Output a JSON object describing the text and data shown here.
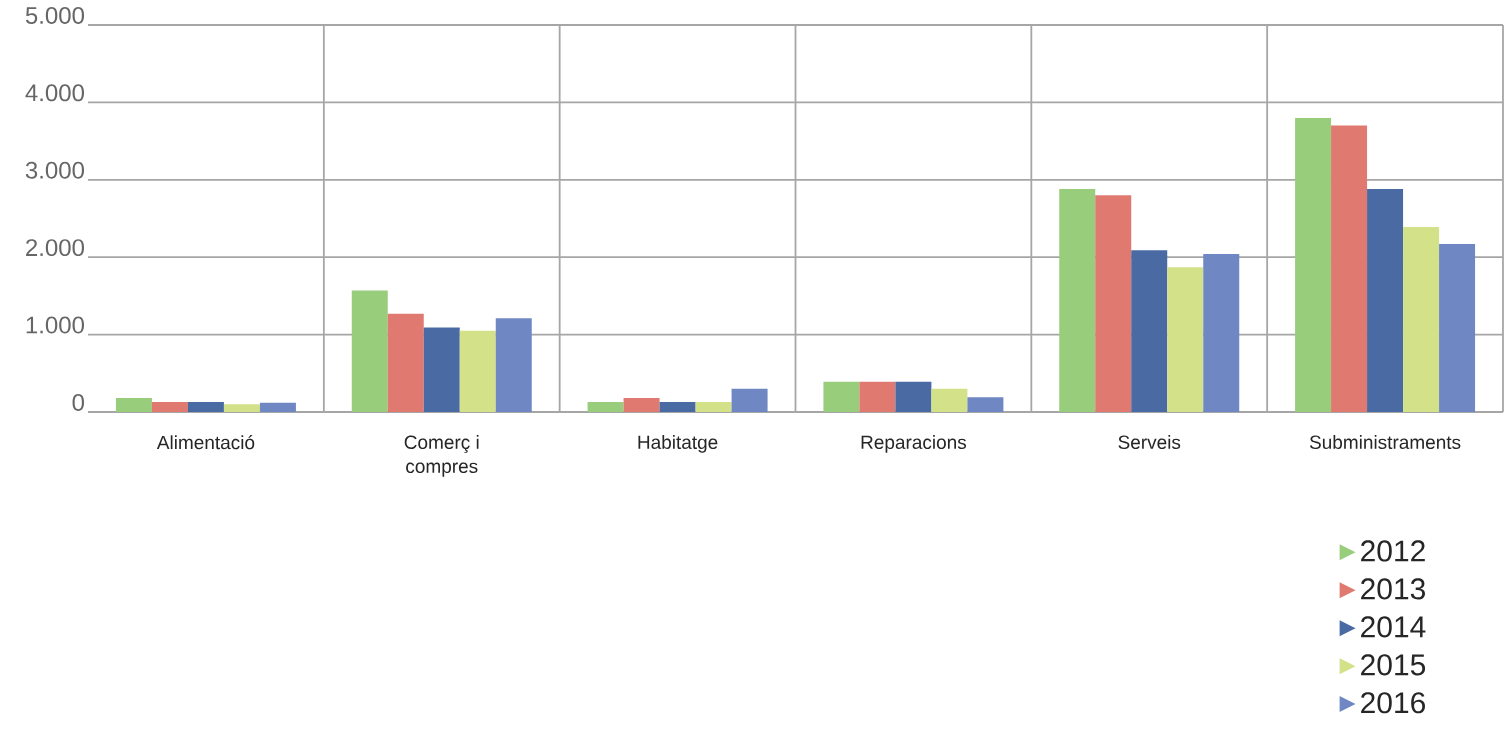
{
  "chart_data": {
    "type": "bar",
    "categories": [
      "Alimentació",
      "Comerç i compres",
      "Habitatge",
      "Reparacions",
      "Serveis",
      "Subministraments"
    ],
    "series": [
      {
        "name": "2012",
        "color": "#98cd7b",
        "values": [
          180,
          1570,
          130,
          390,
          2880,
          3800
        ]
      },
      {
        "name": "2013",
        "color": "#e07970",
        "values": [
          130,
          1270,
          180,
          390,
          2800,
          3700
        ]
      },
      {
        "name": "2014",
        "color": "#4a6aa4",
        "values": [
          130,
          1090,
          130,
          390,
          2090,
          2880
        ]
      },
      {
        "name": "2015",
        "color": "#d3e188",
        "values": [
          100,
          1050,
          130,
          300,
          1870,
          2390
        ]
      },
      {
        "name": "2016",
        "color": "#6f88c4",
        "values": [
          120,
          1210,
          300,
          190,
          2040,
          2170
        ]
      }
    ],
    "ylim": [
      0,
      5000
    ],
    "yticks": [
      0,
      {
        "value": 1000,
        "label": "1.000"
      },
      {
        "value": 2000,
        "label": "2.000"
      },
      {
        "value": 3000,
        "label": "3.000"
      },
      {
        "value": 4000,
        "label": "4.000"
      },
      {
        "value": 5000,
        "label": "5.000"
      }
    ],
    "grid": true,
    "legend": "bottom right"
  }
}
